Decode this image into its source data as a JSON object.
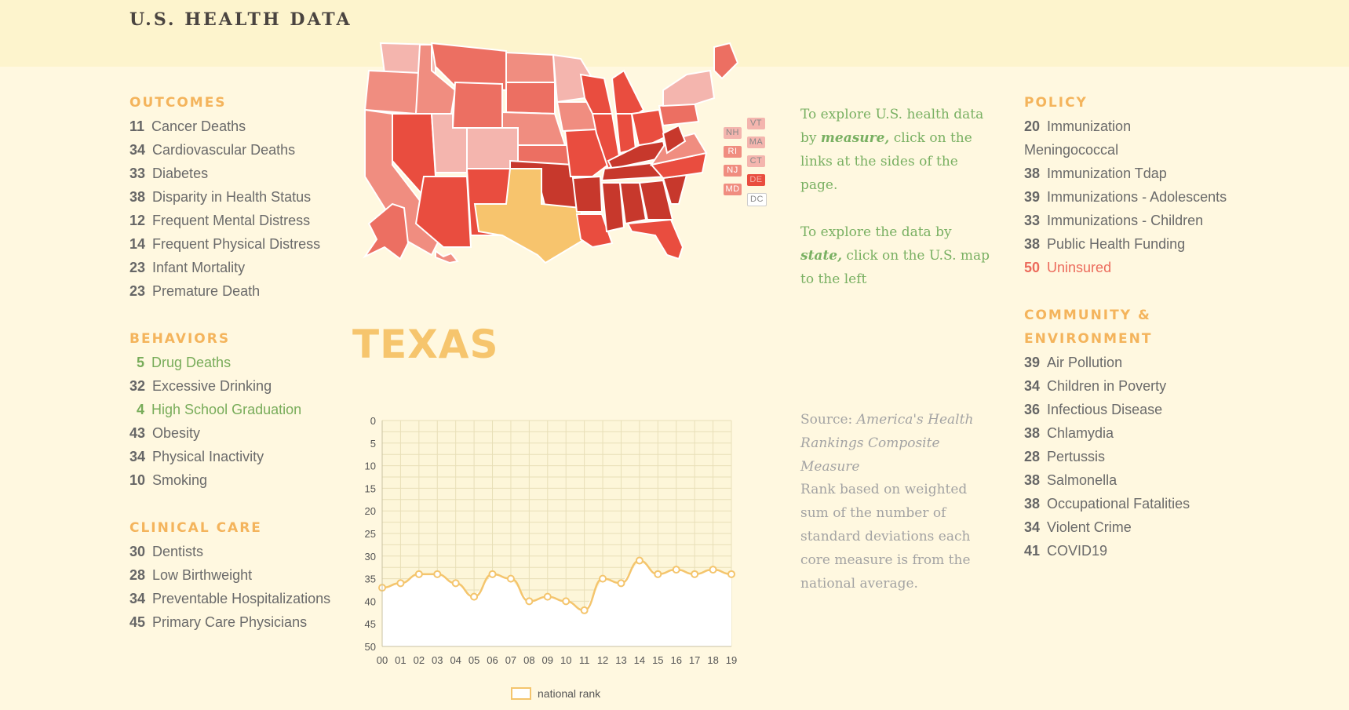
{
  "site_title": "U.S. HEALTH DATA",
  "state_name": "TEXAS",
  "colors": {
    "rank_good": "#78ac5a",
    "rank_bad": "#ec6b5c",
    "section_heading": "#f4b45c",
    "texas_highlight": "#f7c46d",
    "line": "#f4c56d"
  },
  "left_sections": [
    {
      "title": "OUTCOMES",
      "items": [
        {
          "rank": "11",
          "label": "Cancer Deaths"
        },
        {
          "rank": "34",
          "label": "Cardiovascular Deaths"
        },
        {
          "rank": "33",
          "label": "Diabetes"
        },
        {
          "rank": "38",
          "label": "Disparity in Health Status"
        },
        {
          "rank": "12",
          "label": "Frequent Mental Distress"
        },
        {
          "rank": "14",
          "label": "Frequent Physical Distress"
        },
        {
          "rank": "23",
          "label": "Infant Mortality"
        },
        {
          "rank": "23",
          "label": "Premature Death"
        }
      ]
    },
    {
      "title": "BEHAVIORS",
      "items": [
        {
          "rank": "5",
          "label": "Drug Deaths"
        },
        {
          "rank": "32",
          "label": "Excessive Drinking"
        },
        {
          "rank": "4",
          "label": "High School Graduation"
        },
        {
          "rank": "43",
          "label": "Obesity"
        },
        {
          "rank": "34",
          "label": "Physical Inactivity"
        },
        {
          "rank": "10",
          "label": "Smoking"
        }
      ]
    },
    {
      "title": "CLINICAL CARE",
      "items": [
        {
          "rank": "30",
          "label": "Dentists"
        },
        {
          "rank": "28",
          "label": "Low Birthweight"
        },
        {
          "rank": "34",
          "label": "Preventable Hospitalizations"
        },
        {
          "rank": "45",
          "label": "Primary Care Physicians"
        }
      ]
    }
  ],
  "right_sections": [
    {
      "title": "POLICY",
      "items": [
        {
          "rank": "20",
          "label": "Immunization Meningococcal"
        },
        {
          "rank": "38",
          "label": "Immunization Tdap"
        },
        {
          "rank": "39",
          "label": "Immunizations - Adolescents"
        },
        {
          "rank": "33",
          "label": "Immunizations - Children"
        },
        {
          "rank": "38",
          "label": "Public Health Funding"
        },
        {
          "rank": "50",
          "label": "Uninsured"
        }
      ]
    },
    {
      "title": "COMMUNITY & ENVIRONMENT",
      "items": [
        {
          "rank": "39",
          "label": "Air Pollution"
        },
        {
          "rank": "34",
          "label": "Children in Poverty"
        },
        {
          "rank": "36",
          "label": "Infectious Disease"
        },
        {
          "rank": "38",
          "label": "Chlamydia"
        },
        {
          "rank": "28",
          "label": "Pertussis"
        },
        {
          "rank": "38",
          "label": "Salmonella"
        },
        {
          "rank": "38",
          "label": "Occupational Fatalities"
        },
        {
          "rank": "34",
          "label": "Violent Crime"
        },
        {
          "rank": "41",
          "label": "COVID19"
        }
      ]
    }
  ],
  "instructions": {
    "measure": {
      "before": "To explore U.S. health data by ",
      "em": "measure,",
      "after": " click on the links at the sides of the page."
    },
    "state": {
      "before": "To explore the data by ",
      "em": "state,",
      "after": " click on the U.S. map to the left"
    }
  },
  "source": {
    "prefix": "Source: ",
    "name": "America's Health Rankings Composite Measure"
  },
  "description": "Rank based on weighted sum of the number of standard deviations each core measure is from the national average.",
  "small_states": [
    "NH",
    "VT",
    "MA",
    "RI",
    "CT",
    "NJ",
    "DE",
    "MD",
    "DC"
  ],
  "chart_data": {
    "type": "line",
    "title": "",
    "xlabel": "",
    "ylabel": "",
    "categories": [
      "00",
      "01",
      "02",
      "03",
      "04",
      "05",
      "06",
      "07",
      "08",
      "09",
      "10",
      "11",
      "12",
      "13",
      "14",
      "15",
      "16",
      "17",
      "18",
      "19"
    ],
    "series": [
      {
        "name": "national rank",
        "values": [
          37,
          36,
          34,
          34,
          36,
          39,
          34,
          35,
          40,
          39,
          40,
          42,
          35,
          36,
          31,
          34,
          33,
          34,
          33,
          34
        ]
      }
    ],
    "yticks": [
      "0",
      "5",
      "10",
      "15",
      "20",
      "25",
      "30",
      "35",
      "40",
      "45",
      "50"
    ],
    "ylim": [
      0,
      50
    ],
    "y_inverted": true,
    "grid": true,
    "legend": "bottom-center"
  }
}
